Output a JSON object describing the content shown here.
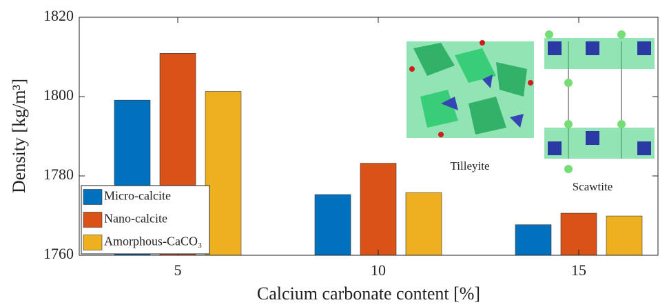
{
  "chart_data": {
    "type": "bar",
    "xlabel": "Calcium carbonate content [%]",
    "ylabel": "Density [kg/m³]",
    "categories": [
      "5",
      "10",
      "15"
    ],
    "series": [
      {
        "name": "Micro-calcite",
        "color": "#0072bd",
        "values": [
          1799.1,
          1775.3,
          1767.7
        ]
      },
      {
        "name": "Nano-calcite",
        "color": "#d95319",
        "values": [
          1810.9,
          1783.2,
          1770.6
        ]
      },
      {
        "name": "Amorphous-CaCO₃",
        "color": "#edb120",
        "values": [
          1801.3,
          1775.8,
          1769.9
        ]
      }
    ],
    "ylim": [
      1760,
      1820
    ],
    "yticks": [
      1760,
      1780,
      1800,
      1820
    ],
    "legend": "lower left",
    "annotations": [
      "Tilleyite",
      "Scawtite"
    ]
  }
}
